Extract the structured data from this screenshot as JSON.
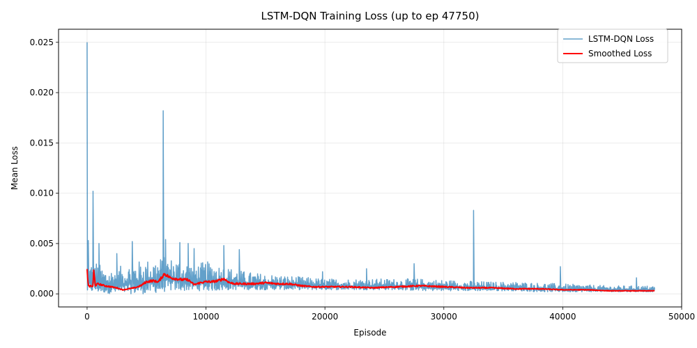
{
  "chart_data": {
    "type": "line",
    "title": "LSTM-DQN Training Loss (up to ep 47750)",
    "xlabel": "Episode",
    "ylabel": "Mean Loss",
    "xlim": [
      -2400,
      50000
    ],
    "ylim": [
      -0.0013,
      0.0263
    ],
    "x_ticks": [
      0,
      10000,
      20000,
      30000,
      40000,
      50000
    ],
    "x_tick_labels": [
      "0",
      "10000",
      "20000",
      "30000",
      "40000",
      "50000"
    ],
    "y_ticks": [
      0.0,
      0.005,
      0.01,
      0.015,
      0.02,
      0.025
    ],
    "y_tick_labels": [
      "0.000",
      "0.005",
      "0.010",
      "0.015",
      "0.020",
      "0.025"
    ],
    "grid": true,
    "legend_position": "top-right",
    "series": [
      {
        "name": "LSTM-DQN Loss",
        "color": "#1f77b4",
        "envelope_x": [
          0,
          250,
          500,
          1000,
          1500,
          2000,
          2500,
          3000,
          3500,
          4000,
          4500,
          5000,
          5500,
          6000,
          6500,
          7000,
          7500,
          8000,
          8500,
          9000,
          9500,
          10000,
          10500,
          11000,
          11500,
          12000,
          12500,
          13000,
          14000,
          15000,
          16000,
          17000,
          18000,
          19000,
          20000,
          22000,
          24000,
          26000,
          28000,
          30000,
          32000,
          34000,
          36000,
          38000,
          40000,
          42000,
          44000,
          46000,
          47750
        ],
        "envelope_upper": [
          0.0035,
          0.003,
          0.0035,
          0.003,
          0.0025,
          0.0025,
          0.0027,
          0.0028,
          0.003,
          0.0032,
          0.0033,
          0.0034,
          0.0035,
          0.0036,
          0.0037,
          0.0036,
          0.0035,
          0.0034,
          0.0032,
          0.003,
          0.0031,
          0.0032,
          0.0032,
          0.003,
          0.0028,
          0.0026,
          0.0025,
          0.0023,
          0.0021,
          0.002,
          0.0019,
          0.0018,
          0.0017,
          0.0016,
          0.0015,
          0.0015,
          0.0015,
          0.0015,
          0.0015,
          0.0014,
          0.0013,
          0.0012,
          0.0012,
          0.0011,
          0.001,
          0.0009,
          0.0008,
          0.0008,
          0.0008
        ],
        "envelope_lower": [
          0.0,
          0.0002,
          0.0001,
          0.0001,
          0.0001,
          0.0,
          0.0,
          0.0,
          0.0,
          0.0,
          0.0,
          0.0,
          0.0001,
          0.0001,
          0.0002,
          0.0003,
          0.0003,
          0.0003,
          0.0003,
          0.0003,
          0.0003,
          0.0003,
          0.0003,
          0.0003,
          0.0003,
          0.0004,
          0.0004,
          0.0004,
          0.0004,
          0.0004,
          0.0004,
          0.0004,
          0.0004,
          0.0004,
          0.0004,
          0.0004,
          0.0004,
          0.0004,
          0.0003,
          0.0003,
          0.0003,
          0.0003,
          0.0003,
          0.0002,
          0.0002,
          0.0002,
          0.0002,
          0.0002,
          0.0002
        ],
        "spikes": [
          {
            "x": 0,
            "y": 0.025
          },
          {
            "x": 100,
            "y": 0.0053
          },
          {
            "x": 500,
            "y": 0.0102
          },
          {
            "x": 1000,
            "y": 0.005
          },
          {
            "x": 2500,
            "y": 0.004
          },
          {
            "x": 3800,
            "y": 0.0052
          },
          {
            "x": 6400,
            "y": 0.0182
          },
          {
            "x": 6600,
            "y": 0.0054
          },
          {
            "x": 7800,
            "y": 0.0051
          },
          {
            "x": 8500,
            "y": 0.005
          },
          {
            "x": 9000,
            "y": 0.0045
          },
          {
            "x": 11500,
            "y": 0.0048
          },
          {
            "x": 12800,
            "y": 0.0044
          },
          {
            "x": 19800,
            "y": 0.0022
          },
          {
            "x": 23500,
            "y": 0.0025
          },
          {
            "x": 27500,
            "y": 0.003
          },
          {
            "x": 32500,
            "y": 0.0083
          },
          {
            "x": 39800,
            "y": 0.0027
          },
          {
            "x": 46200,
            "y": 0.0016
          }
        ]
      },
      {
        "name": "Smoothed Loss",
        "color": "#ff0000",
        "x": [
          0,
          100,
          200,
          300,
          500,
          550,
          700,
          900,
          1200,
          1500,
          2000,
          2500,
          3000,
          3500,
          4000,
          4500,
          5000,
          5500,
          6000,
          6500,
          7000,
          7500,
          8000,
          8500,
          9000,
          9500,
          10000,
          10500,
          11000,
          11500,
          12000,
          12500,
          13000,
          14000,
          15000,
          16000,
          17000,
          18000,
          19000,
          20000,
          22000,
          24000,
          26000,
          28000,
          30000,
          32000,
          34000,
          36000,
          38000,
          40000,
          42000,
          44000,
          46000,
          47750
        ],
        "y": [
          0.0024,
          0.0009,
          0.0007,
          0.0008,
          0.0007,
          0.0024,
          0.0008,
          0.001,
          0.0009,
          0.0008,
          0.0007,
          0.0006,
          0.0004,
          0.0005,
          0.0006,
          0.0008,
          0.0012,
          0.0013,
          0.0012,
          0.002,
          0.0016,
          0.0015,
          0.0014,
          0.0014,
          0.0009,
          0.0011,
          0.0012,
          0.0012,
          0.0013,
          0.0015,
          0.0011,
          0.001,
          0.001,
          0.001,
          0.0011,
          0.001,
          0.001,
          0.0008,
          0.0007,
          0.0007,
          0.0007,
          0.0006,
          0.0007,
          0.0008,
          0.0007,
          0.0006,
          0.0006,
          0.0005,
          0.0005,
          0.0004,
          0.0004,
          0.0003,
          0.0003,
          0.0003
        ]
      }
    ]
  }
}
